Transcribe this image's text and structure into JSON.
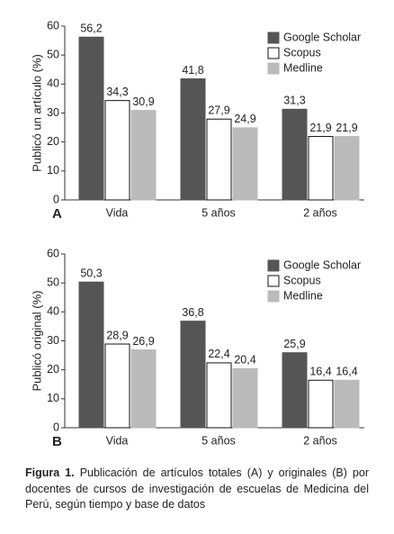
{
  "chart_data": [
    {
      "type": "bar",
      "panel_label": "A",
      "y_label": "Publicó un artículo (%)",
      "categories": [
        "Vida",
        "5 años",
        "2 años"
      ],
      "series": [
        {
          "name": "Google Scholar",
          "color": "#555555",
          "values": [
            56.2,
            41.8,
            31.3
          ],
          "value_labels": [
            "56,2",
            "41,8",
            "31,3"
          ]
        },
        {
          "name": "Scopus",
          "color": "#ffffff",
          "values": [
            34.3,
            27.9,
            21.9
          ],
          "value_labels": [
            "34,3",
            "27,9",
            "21,9"
          ]
        },
        {
          "name": "Medline",
          "color": "#bbbbbb",
          "values": [
            30.9,
            24.9,
            21.9
          ],
          "value_labels": [
            "30,9",
            "24,9",
            "21,9"
          ]
        }
      ],
      "ylim": [
        0,
        60
      ],
      "yticks": [
        0,
        10,
        20,
        30,
        40,
        50,
        60
      ],
      "legend": "upper right"
    },
    {
      "type": "bar",
      "panel_label": "B",
      "y_label": "Publicó original (%)",
      "categories": [
        "Vida",
        "5 años",
        "2 años"
      ],
      "series": [
        {
          "name": "Google Scholar",
          "color": "#555555",
          "values": [
            50.3,
            36.8,
            25.9
          ],
          "value_labels": [
            "50,3",
            "36,8",
            "25,9"
          ]
        },
        {
          "name": "Scopus",
          "color": "#ffffff",
          "values": [
            28.9,
            22.4,
            16.4
          ],
          "value_labels": [
            "28,9",
            "22,4",
            "16,4"
          ]
        },
        {
          "name": "Medline",
          "color": "#bbbbbb",
          "values": [
            26.9,
            20.4,
            16.4
          ],
          "value_labels": [
            "26,9",
            "20,4",
            "16,4"
          ]
        }
      ],
      "ylim": [
        0,
        60
      ],
      "yticks": [
        0,
        10,
        20,
        30,
        40,
        50,
        60
      ],
      "legend": "upper right"
    }
  ],
  "caption": {
    "label": "Figura 1.",
    "text": "Publicación de artículos totales (A) y originales (B) por docentes de cursos de investigación de escuelas de Medicina del Perú, según tiempo y base de datos"
  }
}
